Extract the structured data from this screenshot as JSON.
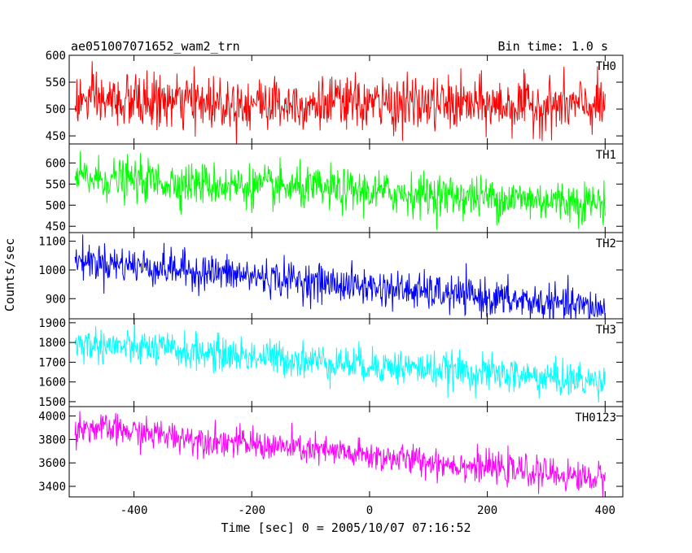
{
  "header": {
    "left_title": "ae051007071652_wam2_trn",
    "right_title": "Bin time: 1.0 s"
  },
  "colors": {
    "TH0": "#ff0000",
    "TH1": "#00ff00",
    "TH2": "#0000ff",
    "TH3": "#00ffff",
    "TH0123": "#ff00ff"
  },
  "chart_data": {
    "type": "line",
    "title": "ae051007071652_wam2_trn",
    "subtitle": "Bin time: 1.0 s",
    "xlabel": "Time [sec] 0 = 2005/10/07 07:16:52",
    "ylabel": "Counts/sec",
    "xlim": [
      -510,
      430
    ],
    "x_ticks": [
      -400,
      -200,
      0,
      200,
      400
    ],
    "x_tick_labels": [
      "-400",
      "-200",
      "0",
      "200",
      "400"
    ],
    "x_data_range": [
      -500,
      400
    ],
    "bin_time_s": 1.0,
    "grid": false,
    "legend": "none",
    "panels": [
      {
        "name": "TH0",
        "color": "#ff0000",
        "ylim": [
          435,
          600
        ],
        "y_ticks": [
          450,
          500,
          550,
          600
        ],
        "y_tick_labels": [
          "450",
          "500",
          "550",
          "600"
        ],
        "trend": [
          [
            -500,
            515
          ],
          [
            400,
            505
          ]
        ],
        "noise_sigma": 25
      },
      {
        "name": "TH1",
        "color": "#00ff00",
        "ylim": [
          435,
          645
        ],
        "y_ticks": [
          450,
          500,
          550,
          600
        ],
        "y_tick_labels": [
          "450",
          "500",
          "550",
          "600"
        ],
        "trend": [
          [
            -500,
            565
          ],
          [
            400,
            505
          ]
        ],
        "noise_sigma": 25
      },
      {
        "name": "TH2",
        "color": "#0000ff",
        "ylim": [
          830,
          1130
        ],
        "y_ticks": [
          900,
          1000,
          1100
        ],
        "y_tick_labels": [
          "900",
          "1000",
          "1100"
        ],
        "trend": [
          [
            -500,
            1035
          ],
          [
            400,
            865
          ]
        ],
        "noise_sigma": 32
      },
      {
        "name": "TH3",
        "color": "#00ffff",
        "ylim": [
          1475,
          1920
        ],
        "y_ticks": [
          1500,
          1600,
          1700,
          1800,
          1900
        ],
        "y_tick_labels": [
          "1500",
          "1600",
          "1700",
          "1800",
          "1900"
        ],
        "trend": [
          [
            -500,
            1795
          ],
          [
            400,
            1600
          ]
        ],
        "noise_sigma": 45
      },
      {
        "name": "TH0123",
        "color": "#ff00ff",
        "ylim": [
          3310,
          4080
        ],
        "y_ticks": [
          3400,
          3600,
          3800,
          4000
        ],
        "y_tick_labels": [
          "3400",
          "3600",
          "3800",
          "4000"
        ],
        "trend": [
          [
            -500,
            3910
          ],
          [
            400,
            3460
          ]
        ],
        "noise_sigma": 65
      }
    ]
  }
}
